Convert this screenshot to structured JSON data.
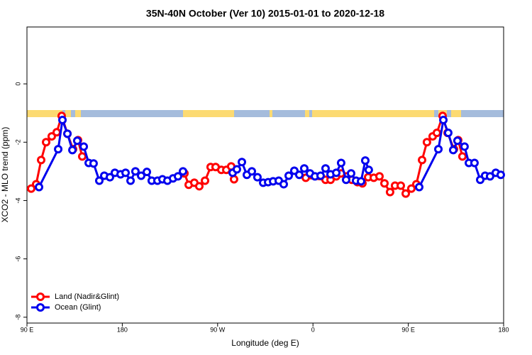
{
  "chart_data": {
    "type": "line",
    "title": "35N-40N October (Ver 10)   2015-01-01 to 2020-12-18",
    "x_label": "Longitude (deg E)",
    "y_label": "XCO2 - MLO trend (ppm)",
    "xlim": [
      90,
      540
    ],
    "ylim": [
      -8.2,
      1.95
    ],
    "xticks": [
      {
        "value": 90,
        "label": "90 E"
      },
      {
        "value": 180,
        "label": "180"
      },
      {
        "value": 270,
        "label": "90 W"
      },
      {
        "value": 360,
        "label": "0"
      },
      {
        "value": 450,
        "label": "90 E"
      },
      {
        "value": 540,
        "label": "180"
      }
    ],
    "yticks": [
      0,
      -2,
      -4,
      -6,
      -8
    ],
    "grid": false,
    "legend": "bottomleft",
    "series": [
      {
        "name": "Land (Nadir&Glint)",
        "color": "#ff0000",
        "x": [
          94.0,
          98.7,
          103.4,
          108.1,
          113.4,
          118.1,
          122.8,
          128.2,
          133.5,
          138.2,
          142.2,
          200,
          238.7,
          242.7,
          248.0,
          252.7,
          258.1,
          263.4,
          268.1,
          273.5,
          278.2,
          282.8,
          285.5,
          320,
          353.2,
          371.9,
          376.6,
          382.0,
          386.6,
          392.0,
          396.7,
          402.0,
          406.7,
          412.1,
          417.4,
          422.8,
          427.5,
          432.8,
          437.5,
          442.9,
          447.6,
          452.9,
          457.6,
          463.0,
          467.6,
          473.0,
          477.0,
          482.4,
          487.1,
          493.1,
          497.1,
          501.1
        ],
        "values": [
          -3.59,
          -3.44,
          -2.61,
          -2.0,
          -1.8,
          -1.66,
          -1.1,
          -1.71,
          -2.24,
          -1.93,
          -2.49,
          null,
          -3.07,
          -3.46,
          -3.39,
          -3.51,
          -3.32,
          -2.85,
          -2.85,
          -2.95,
          -2.95,
          -2.83,
          -3.27,
          null,
          -3.22,
          -3.29,
          -3.29,
          -3.17,
          -3.07,
          -3.17,
          -3.29,
          -3.37,
          -3.41,
          -3.2,
          -3.22,
          -3.17,
          -3.41,
          -3.71,
          -3.49,
          -3.49,
          -3.76,
          -3.59,
          -3.44,
          -2.61,
          -2.0,
          -1.8,
          -1.68,
          -1.1,
          -1.68,
          -2.24,
          -1.93,
          -2.49
        ]
      },
      {
        "name": "Ocean (Glint)",
        "color": "#0000ee",
        "x": [
          101.4,
          119.5,
          123.5,
          128.2,
          132.9,
          137.5,
          143.6,
          148.3,
          152.9,
          158.3,
          163.0,
          168.3,
          173.0,
          178.4,
          183.1,
          187.8,
          192.4,
          197.8,
          203.2,
          207.8,
          213.2,
          217.9,
          222.6,
          227.9,
          232.6,
          237.3,
          260,
          284.2,
          288.2,
          292.9,
          297.6,
          302.3,
          307.6,
          313.0,
          317.7,
          322.4,
          327.7,
          332.4,
          337.1,
          342.4,
          347.1,
          351.8,
          357.2,
          361.9,
          367.2,
          371.9,
          376.6,
          382.0,
          386.6,
          391.3,
          396.0,
          400.7,
          405.4,
          409.4,
          412.7,
          430,
          460.3,
          478.4,
          483.1,
          487.7,
          492.4,
          496.4,
          503.1,
          507.2,
          512.5,
          517.9,
          522.5,
          527.2,
          532.6,
          537.3
        ],
        "values": [
          -3.54,
          -2.24,
          -1.24,
          -1.71,
          -2.27,
          -1.95,
          -2.15,
          -2.71,
          -2.73,
          -3.32,
          -3.15,
          -3.2,
          -3.05,
          -3.1,
          -3.05,
          -3.32,
          -3.0,
          -3.15,
          -3.02,
          -3.32,
          -3.32,
          -3.27,
          -3.32,
          -3.24,
          -3.17,
          -3.0,
          null,
          -3.05,
          -2.93,
          -2.68,
          -3.12,
          -3.0,
          -3.2,
          -3.39,
          -3.37,
          -3.34,
          -3.32,
          -3.44,
          -3.15,
          -2.98,
          -3.12,
          -2.9,
          -3.07,
          -3.17,
          -3.15,
          -2.9,
          -3.1,
          -3.05,
          -2.71,
          -3.29,
          -3.07,
          -3.32,
          -3.34,
          -2.63,
          -2.95,
          null,
          -3.54,
          -2.24,
          -1.24,
          -1.68,
          -2.27,
          -1.95,
          -2.15,
          -2.71,
          -2.71,
          -3.29,
          -3.15,
          -3.17,
          -3.05,
          -3.12
        ]
      }
    ]
  }
}
